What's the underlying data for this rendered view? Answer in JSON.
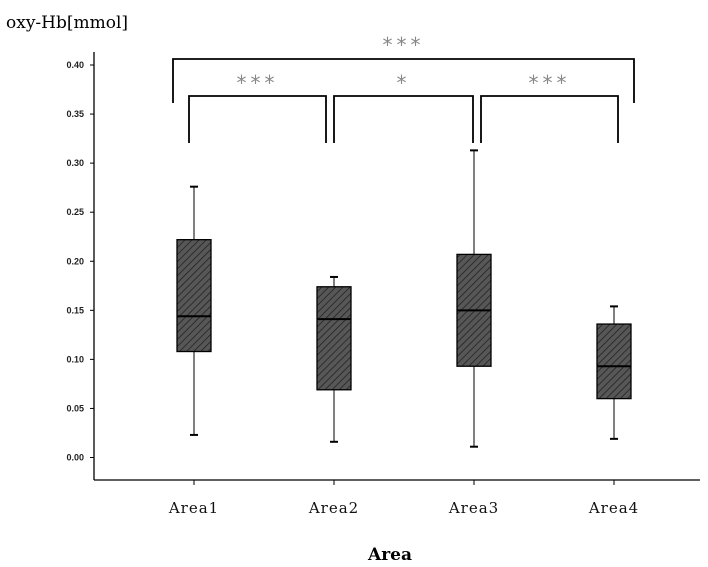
{
  "chart_data": {
    "type": "box",
    "title": "",
    "ylabel": "oxy-Hb[mmol]",
    "xlabel": "Area",
    "ylim": [
      0.0,
      0.4
    ],
    "yticks": [
      "0.00",
      "0.05",
      "0.10",
      "0.15",
      "0.20",
      "0.25",
      "0.30",
      "0.35",
      "0.40"
    ],
    "categories": [
      "Area1",
      "Area2",
      "Area3",
      "Area4"
    ],
    "boxes": [
      {
        "name": "Area1",
        "min": 0.023,
        "q1": 0.108,
        "median": 0.144,
        "q3": 0.222,
        "max": 0.276
      },
      {
        "name": "Area2",
        "min": 0.016,
        "q1": 0.069,
        "median": 0.141,
        "q3": 0.174,
        "max": 0.184
      },
      {
        "name": "Area3",
        "min": 0.011,
        "q1": 0.093,
        "median": 0.15,
        "q3": 0.207,
        "max": 0.313
      },
      {
        "name": "Area4",
        "min": 0.019,
        "q1": 0.06,
        "median": 0.093,
        "q3": 0.136,
        "max": 0.154
      }
    ],
    "significance": [
      {
        "from": "Area1",
        "to": "Area4",
        "label": "***"
      },
      {
        "from": "Area1",
        "to": "Area2",
        "label": "***"
      },
      {
        "from": "Area2",
        "to": "Area3",
        "label": "*"
      },
      {
        "from": "Area3",
        "to": "Area4",
        "label": "***"
      }
    ],
    "box_fill": "#555555",
    "grid": false
  }
}
